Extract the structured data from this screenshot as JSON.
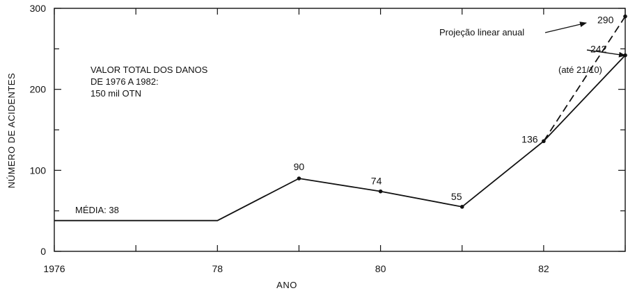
{
  "chart_data": {
    "type": "line",
    "xlabel": "ANO",
    "ylabel": "NÚMERO DE ACIDENTES",
    "xlim": [
      1976,
      1983
    ],
    "ylim": [
      0,
      300
    ],
    "x_ticks": [
      {
        "value": 1976,
        "label": "1976"
      },
      {
        "value": 1978,
        "label": "78"
      },
      {
        "value": 1980,
        "label": "80"
      },
      {
        "value": 1982,
        "label": "82"
      }
    ],
    "y_ticks": [
      {
        "value": 0,
        "label": "0"
      },
      {
        "value": 100,
        "label": "100"
      },
      {
        "value": 200,
        "label": "200"
      },
      {
        "value": 300,
        "label": "300"
      }
    ],
    "series": [
      {
        "style": "solid",
        "points": [
          {
            "x": 1976,
            "y": 38,
            "label": ""
          },
          {
            "x": 1978,
            "y": 38,
            "label": ""
          },
          {
            "x": 1979,
            "y": 90,
            "label": "90"
          },
          {
            "x": 1980,
            "y": 74,
            "label": "74"
          },
          {
            "x": 1981,
            "y": 55,
            "label": "55"
          },
          {
            "x": 1982,
            "y": 136,
            "label": "136"
          },
          {
            "x": 1983,
            "y": 242,
            "label": "242"
          }
        ]
      },
      {
        "style": "dashed",
        "points": [
          {
            "x": 1982,
            "y": 136,
            "label": ""
          },
          {
            "x": 1983,
            "y": 290,
            "label": "290"
          }
        ]
      }
    ],
    "annotations": {
      "media": "MÉDIA: 38",
      "total_line1": "VALOR TOTAL DOS DANOS",
      "total_line2": "DE 1976 A 1982:",
      "total_line3": "150 mil OTN",
      "projection": "Projeção linear anual",
      "until_date": "(até 21/10)"
    },
    "grid": false
  }
}
